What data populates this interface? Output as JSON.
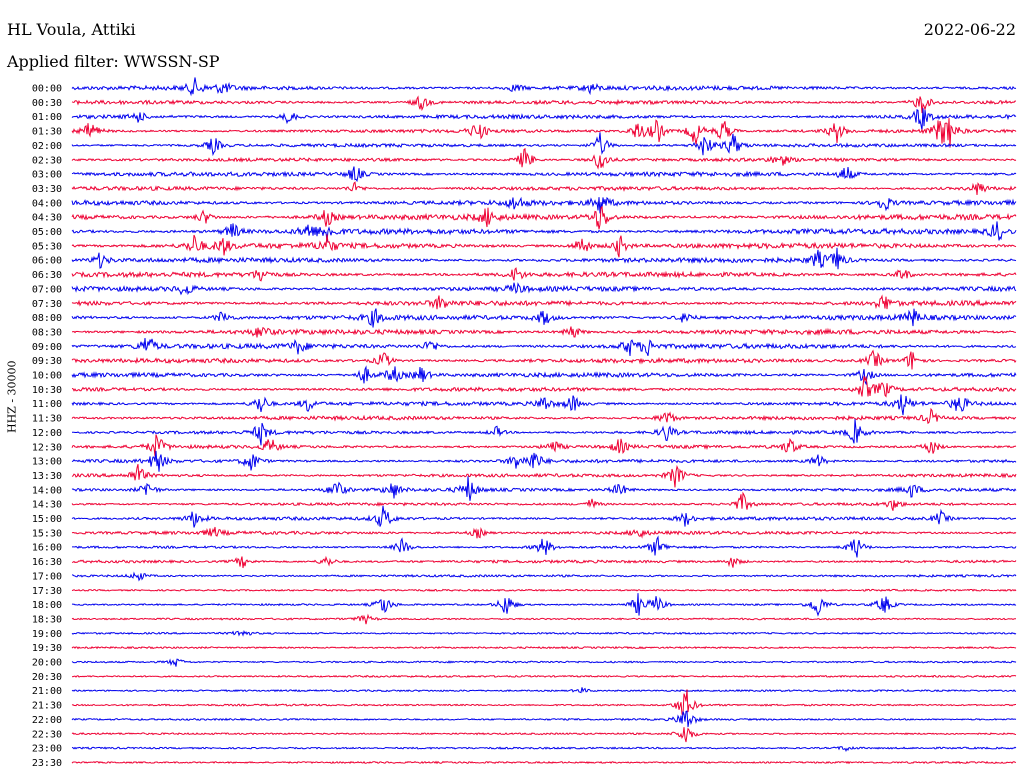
{
  "header": {
    "station": "HL Voula, Attiki",
    "date": "2022-06-22",
    "filter": "Applied filter: WWSSN-SP"
  },
  "channel_label": "HHZ - 30000",
  "colors": {
    "odd_rows": "#0000ee",
    "even_rows": "#ee0033",
    "text": "#000000"
  },
  "chart_data": {
    "type": "line",
    "subtype": "helicorder",
    "title": "HL Voula, Attiki",
    "ylabel": "HHZ - 30000",
    "row_labels": [
      "00:00",
      "00:30",
      "01:00",
      "01:30",
      "02:00",
      "02:30",
      "03:00",
      "03:30",
      "04:00",
      "04:30",
      "05:00",
      "05:30",
      "06:00",
      "06:30",
      "07:00",
      "07:30",
      "08:00",
      "08:30",
      "09:00",
      "09:30",
      "10:00",
      "10:30",
      "11:00",
      "11:30",
      "12:00",
      "12:30",
      "13:00",
      "13:30",
      "14:00",
      "14:30",
      "15:00",
      "15:30",
      "16:00",
      "16:30",
      "17:00",
      "17:30",
      "18:00",
      "18:30",
      "19:00",
      "19:30",
      "20:00",
      "20:30",
      "21:00",
      "21:30",
      "22:00",
      "22:30",
      "23:00",
      "23:30"
    ],
    "row_noise_level": [
      0.6,
      0.5,
      0.5,
      0.4,
      0.4,
      0.4,
      0.6,
      0.5,
      0.7,
      0.8,
      0.8,
      0.8,
      0.7,
      0.7,
      0.7,
      0.7,
      0.7,
      0.7,
      0.7,
      0.6,
      0.6,
      0.5,
      0.5,
      0.5,
      0.4,
      0.4,
      0.4,
      0.4,
      0.4,
      0.3,
      0.4,
      0.4,
      0.2,
      0.3,
      0.2,
      0.1,
      0.1,
      0.1,
      0.1,
      0.1,
      0.1,
      0.1,
      0.1,
      0.1,
      0.1,
      0.1,
      0.1,
      0.1
    ],
    "events": [
      {
        "row": 0,
        "x": 0.13,
        "amp": 9
      },
      {
        "row": 0,
        "x": 0.16,
        "amp": 7
      },
      {
        "row": 0,
        "x": 0.47,
        "amp": 5
      },
      {
        "row": 0,
        "x": 0.55,
        "amp": 6
      },
      {
        "row": 1,
        "x": 0.37,
        "amp": 9
      },
      {
        "row": 1,
        "x": 0.9,
        "amp": 12
      },
      {
        "row": 2,
        "x": 0.07,
        "amp": 6
      },
      {
        "row": 2,
        "x": 0.23,
        "amp": 8
      },
      {
        "row": 2,
        "x": 0.9,
        "amp": 14
      },
      {
        "row": 3,
        "x": 0.02,
        "amp": 12
      },
      {
        "row": 3,
        "x": 0.43,
        "amp": 12
      },
      {
        "row": 3,
        "x": 0.6,
        "amp": 12
      },
      {
        "row": 3,
        "x": 0.62,
        "amp": 14
      },
      {
        "row": 3,
        "x": 0.66,
        "amp": 16
      },
      {
        "row": 3,
        "x": 0.69,
        "amp": 14
      },
      {
        "row": 3,
        "x": 0.81,
        "amp": 12
      },
      {
        "row": 3,
        "x": 0.92,
        "amp": 14
      },
      {
        "row": 3,
        "x": 0.93,
        "amp": 14
      },
      {
        "row": 4,
        "x": 0.15,
        "amp": 10
      },
      {
        "row": 4,
        "x": 0.56,
        "amp": 14
      },
      {
        "row": 4,
        "x": 0.67,
        "amp": 14
      },
      {
        "row": 4,
        "x": 0.7,
        "amp": 14
      },
      {
        "row": 5,
        "x": 0.48,
        "amp": 14
      },
      {
        "row": 5,
        "x": 0.56,
        "amp": 14
      },
      {
        "row": 5,
        "x": 0.75,
        "amp": 8
      },
      {
        "row": 6,
        "x": 0.3,
        "amp": 10
      },
      {
        "row": 6,
        "x": 0.82,
        "amp": 10
      },
      {
        "row": 7,
        "x": 0.3,
        "amp": 6
      },
      {
        "row": 7,
        "x": 0.96,
        "amp": 8
      },
      {
        "row": 8,
        "x": 0.47,
        "amp": 9
      },
      {
        "row": 8,
        "x": 0.56,
        "amp": 12
      },
      {
        "row": 8,
        "x": 0.86,
        "amp": 10
      },
      {
        "row": 9,
        "x": 0.14,
        "amp": 8
      },
      {
        "row": 9,
        "x": 0.27,
        "amp": 10
      },
      {
        "row": 9,
        "x": 0.44,
        "amp": 10
      },
      {
        "row": 9,
        "x": 0.56,
        "amp": 18
      },
      {
        "row": 10,
        "x": 0.17,
        "amp": 10
      },
      {
        "row": 10,
        "x": 0.25,
        "amp": 9
      },
      {
        "row": 10,
        "x": 0.27,
        "amp": 10
      },
      {
        "row": 10,
        "x": 0.98,
        "amp": 12
      },
      {
        "row": 11,
        "x": 0.13,
        "amp": 12
      },
      {
        "row": 11,
        "x": 0.16,
        "amp": 10
      },
      {
        "row": 11,
        "x": 0.27,
        "amp": 10
      },
      {
        "row": 11,
        "x": 0.54,
        "amp": 12
      },
      {
        "row": 11,
        "x": 0.58,
        "amp": 12
      },
      {
        "row": 12,
        "x": 0.03,
        "amp": 8
      },
      {
        "row": 12,
        "x": 0.79,
        "amp": 10
      },
      {
        "row": 12,
        "x": 0.81,
        "amp": 12
      },
      {
        "row": 13,
        "x": 0.2,
        "amp": 8
      },
      {
        "row": 13,
        "x": 0.47,
        "amp": 8
      },
      {
        "row": 13,
        "x": 0.88,
        "amp": 8
      },
      {
        "row": 14,
        "x": 0.12,
        "amp": 8
      },
      {
        "row": 14,
        "x": 0.47,
        "amp": 6
      },
      {
        "row": 15,
        "x": 0.39,
        "amp": 8
      },
      {
        "row": 15,
        "x": 0.86,
        "amp": 10
      },
      {
        "row": 16,
        "x": 0.16,
        "amp": 8
      },
      {
        "row": 16,
        "x": 0.32,
        "amp": 10
      },
      {
        "row": 16,
        "x": 0.5,
        "amp": 9
      },
      {
        "row": 16,
        "x": 0.65,
        "amp": 8
      },
      {
        "row": 16,
        "x": 0.89,
        "amp": 10
      },
      {
        "row": 17,
        "x": 0.2,
        "amp": 8
      },
      {
        "row": 17,
        "x": 0.53,
        "amp": 8
      },
      {
        "row": 18,
        "x": 0.08,
        "amp": 14
      },
      {
        "row": 18,
        "x": 0.24,
        "amp": 8
      },
      {
        "row": 18,
        "x": 0.38,
        "amp": 8
      },
      {
        "row": 18,
        "x": 0.59,
        "amp": 10
      },
      {
        "row": 18,
        "x": 0.61,
        "amp": 9
      },
      {
        "row": 19,
        "x": 0.33,
        "amp": 10
      },
      {
        "row": 19,
        "x": 0.85,
        "amp": 12
      },
      {
        "row": 19,
        "x": 0.89,
        "amp": 12
      },
      {
        "row": 20,
        "x": 0.31,
        "amp": 10
      },
      {
        "row": 20,
        "x": 0.34,
        "amp": 12
      },
      {
        "row": 20,
        "x": 0.37,
        "amp": 10
      },
      {
        "row": 20,
        "x": 0.84,
        "amp": 10
      },
      {
        "row": 21,
        "x": 0.84,
        "amp": 14
      },
      {
        "row": 21,
        "x": 0.86,
        "amp": 10
      },
      {
        "row": 22,
        "x": 0.2,
        "amp": 12
      },
      {
        "row": 22,
        "x": 0.25,
        "amp": 8
      },
      {
        "row": 22,
        "x": 0.5,
        "amp": 9
      },
      {
        "row": 22,
        "x": 0.53,
        "amp": 10
      },
      {
        "row": 22,
        "x": 0.88,
        "amp": 12
      },
      {
        "row": 22,
        "x": 0.94,
        "amp": 12
      },
      {
        "row": 23,
        "x": 0.63,
        "amp": 10
      },
      {
        "row": 23,
        "x": 0.91,
        "amp": 8
      },
      {
        "row": 24,
        "x": 0.2,
        "amp": 12
      },
      {
        "row": 24,
        "x": 0.45,
        "amp": 6
      },
      {
        "row": 24,
        "x": 0.63,
        "amp": 10
      },
      {
        "row": 24,
        "x": 0.83,
        "amp": 14
      },
      {
        "row": 25,
        "x": 0.09,
        "amp": 14
      },
      {
        "row": 25,
        "x": 0.21,
        "amp": 10
      },
      {
        "row": 25,
        "x": 0.51,
        "amp": 8
      },
      {
        "row": 25,
        "x": 0.58,
        "amp": 9
      },
      {
        "row": 25,
        "x": 0.76,
        "amp": 10
      },
      {
        "row": 25,
        "x": 0.91,
        "amp": 10
      },
      {
        "row": 26,
        "x": 0.09,
        "amp": 14
      },
      {
        "row": 26,
        "x": 0.19,
        "amp": 12
      },
      {
        "row": 26,
        "x": 0.47,
        "amp": 8
      },
      {
        "row": 26,
        "x": 0.49,
        "amp": 12
      },
      {
        "row": 26,
        "x": 0.79,
        "amp": 8
      },
      {
        "row": 27,
        "x": 0.07,
        "amp": 12
      },
      {
        "row": 27,
        "x": 0.64,
        "amp": 14
      },
      {
        "row": 28,
        "x": 0.08,
        "amp": 10
      },
      {
        "row": 28,
        "x": 0.28,
        "amp": 12
      },
      {
        "row": 28,
        "x": 0.34,
        "amp": 10
      },
      {
        "row": 28,
        "x": 0.42,
        "amp": 14
      },
      {
        "row": 28,
        "x": 0.58,
        "amp": 8
      },
      {
        "row": 28,
        "x": 0.89,
        "amp": 8
      },
      {
        "row": 29,
        "x": 0.55,
        "amp": 6
      },
      {
        "row": 29,
        "x": 0.71,
        "amp": 12
      },
      {
        "row": 29,
        "x": 0.87,
        "amp": 6
      },
      {
        "row": 30,
        "x": 0.13,
        "amp": 10
      },
      {
        "row": 30,
        "x": 0.33,
        "amp": 14
      },
      {
        "row": 30,
        "x": 0.65,
        "amp": 8
      },
      {
        "row": 30,
        "x": 0.92,
        "amp": 8
      },
      {
        "row": 31,
        "x": 0.15,
        "amp": 6
      },
      {
        "row": 31,
        "x": 0.43,
        "amp": 6
      },
      {
        "row": 31,
        "x": 0.6,
        "amp": 6
      },
      {
        "row": 32,
        "x": 0.35,
        "amp": 10
      },
      {
        "row": 32,
        "x": 0.5,
        "amp": 12
      },
      {
        "row": 32,
        "x": 0.62,
        "amp": 12
      },
      {
        "row": 32,
        "x": 0.83,
        "amp": 14
      },
      {
        "row": 33,
        "x": 0.18,
        "amp": 7
      },
      {
        "row": 33,
        "x": 0.27,
        "amp": 6
      },
      {
        "row": 33,
        "x": 0.7,
        "amp": 6
      },
      {
        "row": 34,
        "x": 0.07,
        "amp": 6
      },
      {
        "row": 36,
        "x": 0.33,
        "amp": 12
      },
      {
        "row": 36,
        "x": 0.46,
        "amp": 14
      },
      {
        "row": 36,
        "x": 0.6,
        "amp": 12
      },
      {
        "row": 36,
        "x": 0.62,
        "amp": 10
      },
      {
        "row": 36,
        "x": 0.79,
        "amp": 14
      },
      {
        "row": 36,
        "x": 0.86,
        "amp": 12
      },
      {
        "row": 37,
        "x": 0.31,
        "amp": 6
      },
      {
        "row": 38,
        "x": 0.18,
        "amp": 5
      },
      {
        "row": 40,
        "x": 0.11,
        "amp": 5
      },
      {
        "row": 42,
        "x": 0.54,
        "amp": 3
      },
      {
        "row": 43,
        "x": 0.65,
        "amp": 20
      },
      {
        "row": 44,
        "x": 0.65,
        "amp": 16
      },
      {
        "row": 45,
        "x": 0.65,
        "amp": 12
      },
      {
        "row": 46,
        "x": 0.82,
        "amp": 3
      }
    ]
  }
}
